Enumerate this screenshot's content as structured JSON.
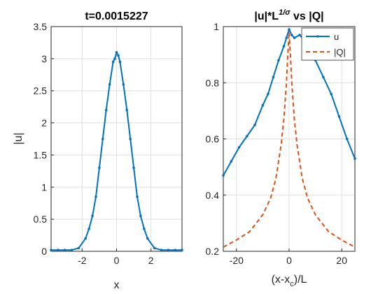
{
  "colors": {
    "series1": "#0072BD",
    "series2": "#D95319",
    "grid": "#dfdfdf",
    "axis": "#262626"
  },
  "chart_data": [
    {
      "type": "line",
      "title": "t=0.0015227",
      "xlabel": "x",
      "ylabel": "|u|",
      "xlim": [
        -3.8,
        3.8
      ],
      "ylim": [
        0,
        3.5
      ],
      "xticks": [
        -2,
        0,
        2
      ],
      "xtick_labels": [
        "-2",
        "0",
        "2"
      ],
      "yticks": [
        0,
        0.5,
        1,
        1.5,
        2,
        2.5,
        3,
        3.5
      ],
      "ytick_labels": [
        "0",
        "0.5",
        "1",
        "1.5",
        "2",
        "2.5",
        "3",
        "3.5"
      ],
      "grid": true,
      "series": [
        {
          "marker": "dot",
          "x": [
            -3.8,
            -3.4,
            -3.0,
            -2.6,
            -2.2,
            -1.8,
            -1.6,
            -1.4,
            -1.2,
            -1.0,
            -0.8,
            -0.6,
            -0.4,
            -0.2,
            -0.1,
            0.0,
            0.1,
            0.2,
            0.4,
            0.6,
            0.8,
            1.0,
            1.2,
            1.4,
            1.6,
            1.8,
            2.2,
            2.6,
            3.0,
            3.4,
            3.8
          ],
          "y": [
            0.02,
            0.02,
            0.02,
            0.02,
            0.05,
            0.2,
            0.35,
            0.55,
            0.85,
            1.3,
            1.75,
            2.2,
            2.6,
            2.95,
            3.0,
            3.1,
            3.05,
            2.95,
            2.6,
            2.2,
            1.75,
            1.3,
            0.85,
            0.55,
            0.35,
            0.2,
            0.05,
            0.02,
            0.02,
            0.02,
            0.02
          ]
        }
      ]
    },
    {
      "type": "line",
      "title_main": "|u|*L",
      "title_sup": "1/σ",
      "title_tail": " vs |Q|",
      "xlabel_main": "(x-x",
      "xlabel_sub": "c",
      "xlabel_tail": ")/L",
      "xlim": [
        -25,
        25
      ],
      "ylim": [
        0.2,
        1
      ],
      "xticks": [
        -20,
        0,
        20
      ],
      "xtick_labels": [
        "-20",
        "0",
        "20"
      ],
      "yticks": [
        0.2,
        0.4,
        0.6,
        0.8,
        1
      ],
      "ytick_labels": [
        "0.2",
        "0.4",
        "0.6",
        "0.8",
        "1"
      ],
      "grid": true,
      "legend_position": "top-right",
      "series": [
        {
          "name": "u",
          "style": "solid",
          "x": [
            -25,
            -22,
            -19,
            -16,
            -13,
            -10,
            -8,
            -6,
            -4,
            -2,
            -1,
            0,
            1,
            2,
            4,
            6,
            8,
            10,
            13,
            16,
            19,
            22,
            25
          ],
          "y": [
            0.47,
            0.52,
            0.57,
            0.61,
            0.65,
            0.72,
            0.76,
            0.82,
            0.88,
            0.93,
            0.96,
            0.99,
            0.97,
            0.96,
            0.97,
            0.95,
            0.93,
            0.88,
            0.82,
            0.76,
            0.68,
            0.6,
            0.53
          ]
        },
        {
          "name": "|Q|",
          "style": "dashed",
          "x": [
            -25,
            -20,
            -15,
            -10,
            -7,
            -5,
            -3,
            -2,
            -1,
            -0.5,
            0,
            0.5,
            1,
            2,
            3,
            5,
            7,
            10,
            15,
            20,
            25
          ],
          "y": [
            0.215,
            0.24,
            0.27,
            0.33,
            0.39,
            0.46,
            0.58,
            0.67,
            0.8,
            0.9,
            0.98,
            0.9,
            0.8,
            0.67,
            0.58,
            0.46,
            0.39,
            0.33,
            0.27,
            0.24,
            0.215
          ]
        }
      ]
    }
  ]
}
